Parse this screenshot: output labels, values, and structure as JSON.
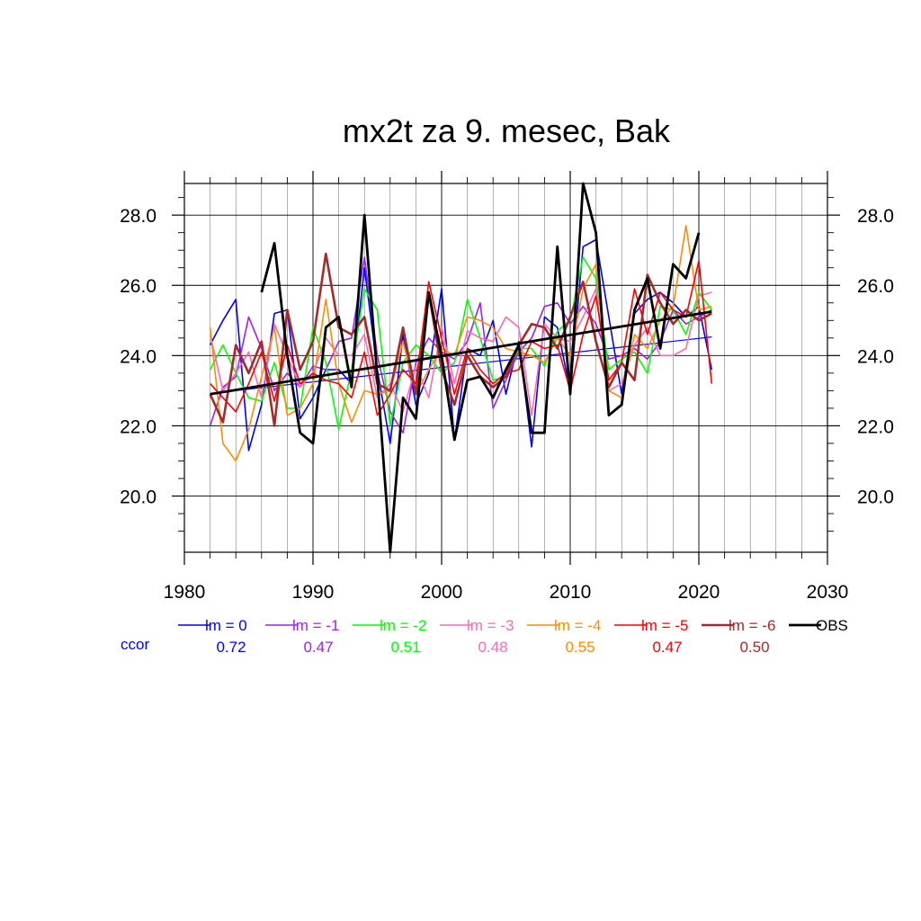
{
  "chart_data": {
    "type": "line",
    "title": "mx2t za 9. mesec, Bak",
    "xlabel": "",
    "ylabel": "",
    "xlim": [
      1980,
      2030
    ],
    "ylim": [
      18.4,
      28.9
    ],
    "x_ticks": [
      {
        "value": 1980,
        "label": "1980"
      },
      {
        "value": 1990,
        "label": "1990"
      },
      {
        "value": 2000,
        "label": "2000"
      },
      {
        "value": 2010,
        "label": "2010"
      },
      {
        "value": 2020,
        "label": "2020"
      },
      {
        "value": 2030,
        "label": "2030"
      }
    ],
    "y_ticks": [
      {
        "value": 20,
        "label": "20.0"
      },
      {
        "value": 22,
        "label": "22.0"
      },
      {
        "value": 24,
        "label": "24.0"
      },
      {
        "value": 26,
        "label": "26.0"
      },
      {
        "value": 28,
        "label": "28.0"
      }
    ],
    "grid": true,
    "legend_position": "bottom",
    "ccor_label": "ccor",
    "ccor_color": "#0000ff",
    "series": [
      {
        "name": "lm = 0",
        "color": "#0000ff",
        "ccor": "0.72",
        "width": 1.6,
        "trend": [
          [
            1982,
            22.92
          ],
          [
            2021,
            24.53
          ]
        ],
        "x": [
          1982,
          1983,
          1984,
          1985,
          1986,
          1987,
          1988,
          1989,
          1990,
          1991,
          1992,
          1993,
          1994,
          1995,
          1996,
          1997,
          1998,
          1999,
          2000,
          2001,
          2002,
          2003,
          2004,
          2005,
          2006,
          2007,
          2008,
          2009,
          2010,
          2011,
          2012,
          2013,
          2014,
          2015,
          2016,
          2017,
          2018,
          2019,
          2020,
          2021
        ],
        "y": [
          24.3,
          25.0,
          25.6,
          21.3,
          22.6,
          25.2,
          25.3,
          22.2,
          22.8,
          23.6,
          23.6,
          23.2,
          26.5,
          23.6,
          21.5,
          24.6,
          22.6,
          23.5,
          25.9,
          21.6,
          24.2,
          24.0,
          25.0,
          22.9,
          24.4,
          21.4,
          25.1,
          24.8,
          23.0,
          27.1,
          27.3,
          25.1,
          22.9,
          25.2,
          25.6,
          25.8,
          25.5,
          25.1,
          25.4,
          23.6
        ]
      },
      {
        "name": "lm = -1",
        "color": "#a020f0",
        "ccor": "0.47",
        "width": 1.6,
        "x": [
          1982,
          1983,
          1984,
          1985,
          1986,
          1987,
          1988,
          1989,
          1990,
          1991,
          1992,
          1993,
          1994,
          1995,
          1996,
          1997,
          1998,
          1999,
          2000,
          2001,
          2002,
          2003,
          2004,
          2005,
          2006,
          2007,
          2008,
          2009,
          2010,
          2011,
          2012,
          2013,
          2014,
          2015,
          2016,
          2017,
          2018,
          2019,
          2020,
          2021
        ],
        "y": [
          22.0,
          23.1,
          23.4,
          25.1,
          24.2,
          23.0,
          23.5,
          23.1,
          23.7,
          23.6,
          24.4,
          24.5,
          26.8,
          24.0,
          22.4,
          21.8,
          23.8,
          24.5,
          24.1,
          23.9,
          24.4,
          25.5,
          22.5,
          23.3,
          24.1,
          24.5,
          25.4,
          25.5,
          24.9,
          25.4,
          24.9,
          23.9,
          24.0,
          24.2,
          23.9,
          24.4,
          25.3,
          24.9,
          25.1,
          25.3
        ]
      },
      {
        "name": "lm = -2",
        "color": "#00ff00",
        "ccor": "0.51",
        "width": 1.6,
        "x": [
          1982,
          1983,
          1984,
          1985,
          1986,
          1987,
          1988,
          1989,
          1990,
          1991,
          1992,
          1993,
          1994,
          1995,
          1996,
          1997,
          1998,
          1999,
          2000,
          2001,
          2002,
          2003,
          2004,
          2005,
          2006,
          2007,
          2008,
          2009,
          2010,
          2011,
          2012,
          2013,
          2014,
          2015,
          2016,
          2017,
          2018,
          2019,
          2020,
          2021
        ],
        "y": [
          23.6,
          24.3,
          23.5,
          22.8,
          22.7,
          23.8,
          22.5,
          22.5,
          24.8,
          23.8,
          21.9,
          23.6,
          25.9,
          25.3,
          22.0,
          23.8,
          24.3,
          24.0,
          23.5,
          23.8,
          25.6,
          24.5,
          23.3,
          23.4,
          24.2,
          24.2,
          23.7,
          24.7,
          25.0,
          26.8,
          26.2,
          23.6,
          23.9,
          24.1,
          23.5,
          25.4,
          25.3,
          24.6,
          25.8,
          25.3
        ]
      },
      {
        "name": "lm = -3",
        "color": "#ff69b4",
        "ccor": "0.48",
        "width": 1.6,
        "x": [
          1982,
          1983,
          1984,
          1985,
          1986,
          1987,
          1988,
          1989,
          1990,
          1991,
          1992,
          1993,
          1994,
          1995,
          1996,
          1997,
          1998,
          1999,
          2000,
          2001,
          2002,
          2003,
          2004,
          2005,
          2006,
          2007,
          2008,
          2009,
          2010,
          2011,
          2012,
          2013,
          2014,
          2015,
          2016,
          2017,
          2018,
          2019,
          2020,
          2021
        ],
        "y": [
          24.6,
          23.0,
          23.5,
          24.1,
          22.8,
          24.9,
          24.0,
          23.1,
          23.5,
          24.5,
          24.0,
          24.0,
          24.6,
          22.8,
          23.2,
          22.4,
          23.7,
          22.8,
          24.8,
          23.2,
          24.7,
          24.5,
          24.4,
          25.1,
          24.8,
          22.3,
          24.9,
          24.5,
          24.4,
          25.1,
          25.9,
          23.0,
          23.2,
          24.3,
          24.8,
          24.0,
          24.0,
          24.2,
          25.7,
          25.8
        ]
      },
      {
        "name": "lm = -4",
        "color": "#ff8c00",
        "ccor": "0.55",
        "width": 1.6,
        "x": [
          1982,
          1983,
          1984,
          1985,
          1986,
          1987,
          1988,
          1989,
          1990,
          1991,
          1992,
          1993,
          1994,
          1995,
          1996,
          1997,
          1998,
          1999,
          2000,
          2001,
          2002,
          2003,
          2004,
          2005,
          2006,
          2007,
          2008,
          2009,
          2010,
          2011,
          2012,
          2013,
          2014,
          2015,
          2016,
          2017,
          2018,
          2019,
          2020,
          2021
        ],
        "y": [
          24.8,
          21.5,
          21.0,
          21.9,
          23.4,
          24.8,
          22.3,
          22.5,
          23.2,
          25.6,
          23.2,
          22.1,
          23.0,
          22.9,
          23.0,
          24.4,
          22.9,
          23.6,
          24.2,
          24.0,
          25.1,
          25.0,
          24.8,
          24.2,
          24.1,
          24.0,
          23.8,
          24.5,
          24.0,
          25.9,
          26.6,
          23.0,
          22.8,
          24.6,
          24.2,
          25.0,
          25.4,
          27.7,
          25.3,
          25.4
        ]
      },
      {
        "name": "lm = -5",
        "color": "#ff0000",
        "ccor": "0.47",
        "width": 1.6,
        "x": [
          1982,
          1983,
          1984,
          1985,
          1986,
          1987,
          1988,
          1989,
          1990,
          1991,
          1992,
          1993,
          1994,
          1995,
          1996,
          1997,
          1998,
          1999,
          2000,
          2001,
          2002,
          2003,
          2004,
          2005,
          2006,
          2007,
          2008,
          2009,
          2010,
          2011,
          2012,
          2013,
          2014,
          2015,
          2016,
          2017,
          2018,
          2019,
          2020,
          2021
        ],
        "y": [
          23.2,
          22.8,
          22.4,
          23.2,
          24.1,
          22.7,
          24.3,
          23.2,
          23.5,
          23.3,
          23.2,
          22.8,
          24.1,
          22.3,
          22.9,
          23.6,
          23.2,
          26.1,
          24.5,
          22.9,
          24.2,
          23.6,
          23.2,
          23.5,
          23.6,
          24.4,
          24.2,
          24.3,
          23.0,
          24.6,
          25.7,
          23.3,
          23.8,
          25.9,
          24.6,
          25.8,
          25.3,
          25.1,
          26.7,
          23.2
        ]
      },
      {
        "name": "lm = -6",
        "color": "#a52a2a",
        "ccor": "0.50",
        "width": 2.6,
        "x": [
          1982,
          1983,
          1984,
          1985,
          1986,
          1987,
          1988,
          1989,
          1990,
          1991,
          1992,
          1993,
          1994,
          1995,
          1996,
          1997,
          1998,
          1999,
          2000,
          2001,
          2002,
          2003,
          2004,
          2005,
          2006,
          2007,
          2008,
          2009,
          2010,
          2011,
          2012,
          2013,
          2014,
          2015,
          2016,
          2017,
          2018,
          2019,
          2020,
          2021
        ],
        "y": [
          22.9,
          22.1,
          24.3,
          23.5,
          24.4,
          22.0,
          25.3,
          23.6,
          24.4,
          26.9,
          24.8,
          24.6,
          25.1,
          23.2,
          23.0,
          24.8,
          22.9,
          25.8,
          23.6,
          22.6,
          24.0,
          23.4,
          23.1,
          23.4,
          24.3,
          24.9,
          24.8,
          24.2,
          25.1,
          26.1,
          24.4,
          23.1,
          23.8,
          23.3,
          26.3,
          25.5,
          24.9,
          25.3,
          25.0,
          25.2
        ]
      },
      {
        "name": "OBS",
        "color": "#000000",
        "ccor": "",
        "width": 2.8,
        "trend": [
          [
            1982,
            22.9
          ],
          [
            2021,
            25.25
          ]
        ],
        "x": [
          1986,
          1987,
          1988,
          1989,
          1990,
          1991,
          1992,
          1993,
          1994,
          1995,
          1996,
          1997,
          1998,
          1999,
          2000,
          2001,
          2002,
          2003,
          2004,
          2005,
          2006,
          2007,
          2008,
          2009,
          2010,
          2011,
          2012,
          2013,
          2014,
          2015,
          2016,
          2017,
          2018,
          2019,
          2020
        ],
        "y": [
          25.8,
          27.2,
          24.0,
          21.8,
          21.5,
          24.8,
          25.1,
          23.1,
          28.0,
          23.4,
          18.4,
          22.8,
          22.2,
          25.8,
          24.0,
          21.6,
          23.3,
          23.4,
          22.8,
          23.6,
          24.3,
          21.8,
          21.8,
          27.1,
          22.9,
          28.9,
          27.5,
          22.3,
          22.6,
          25.3,
          26.2,
          24.2,
          26.6,
          26.2,
          27.5
        ]
      }
    ]
  }
}
